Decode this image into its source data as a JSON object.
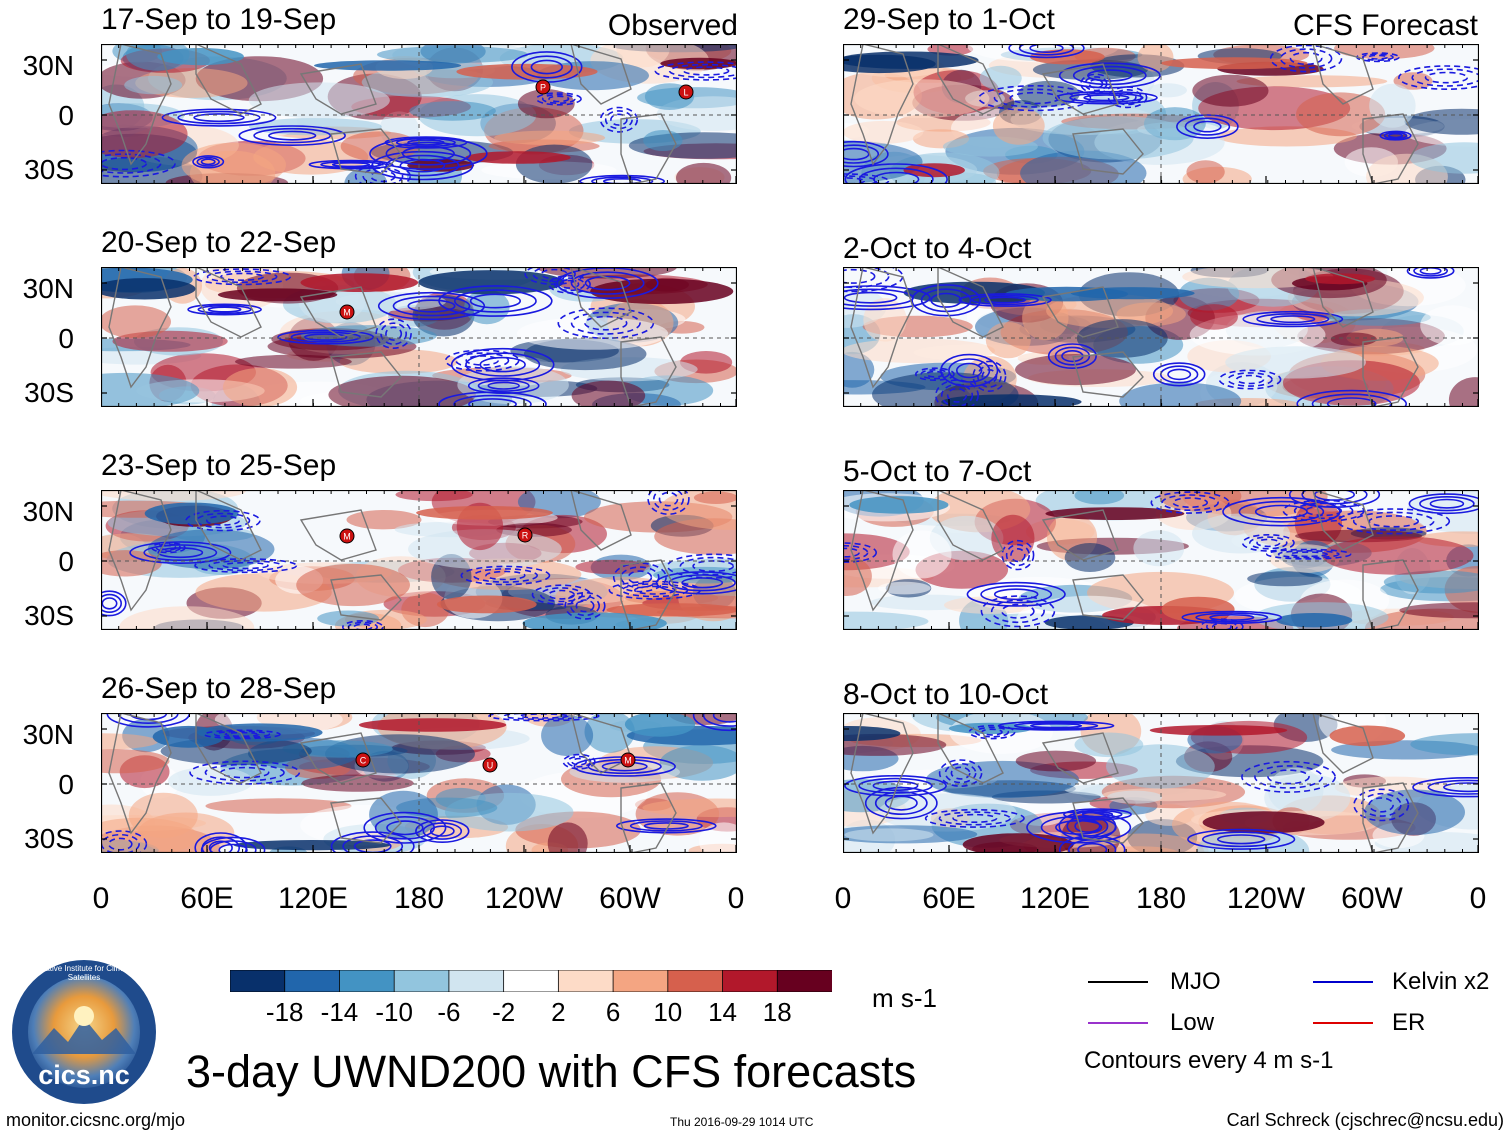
{
  "header": {
    "observed_label": "Observed",
    "forecast_label": "CFS Forecast"
  },
  "panels": {
    "left": [
      {
        "title": "17-Sep to 19-Sep",
        "storms": [
          "P",
          "L"
        ]
      },
      {
        "title": "20-Sep to 22-Sep",
        "storms": [
          "M"
        ]
      },
      {
        "title": "23-Sep to 25-Sep",
        "storms": [
          "M",
          "R"
        ]
      },
      {
        "title": "26-Sep to 28-Sep",
        "storms": [
          "C",
          "U",
          "M"
        ]
      }
    ],
    "right": [
      {
        "title": "29-Sep to 1-Oct"
      },
      {
        "title": "2-Oct to 4-Oct"
      },
      {
        "title": "5-Oct to 7-Oct"
      },
      {
        "title": "8-Oct to 10-Oct"
      }
    ]
  },
  "axes": {
    "lat_labels": [
      "30N",
      "0",
      "30S"
    ],
    "lon_labels": [
      "0",
      "60E",
      "120E",
      "180",
      "120W",
      "60W",
      "0"
    ]
  },
  "colorbar": {
    "ticks": [
      "-18",
      "-14",
      "-10",
      "-6",
      "-2",
      "2",
      "6",
      "10",
      "14",
      "18"
    ],
    "colors": [
      "#08306b",
      "#2166ac",
      "#4393c3",
      "#92c5de",
      "#d1e5f0",
      "#ffffff",
      "#fddbc7",
      "#f4a582",
      "#d6604d",
      "#b2182b",
      "#67001f"
    ],
    "units": "m s-1"
  },
  "legend": {
    "items": [
      {
        "label": "MJO",
        "color": "#000000"
      },
      {
        "label": "Kelvin x2",
        "color": "#0000cc"
      },
      {
        "label": "Low",
        "color": "#9932cc"
      },
      {
        "label": "ER",
        "color": "#dd0000"
      }
    ],
    "contour_note": "Contours every 4 m s-1"
  },
  "logo": {
    "text": "cics.nc",
    "ring_text": "Cooperative Institute for Climate and Satellites"
  },
  "footer": {
    "title": "3-day UWND200 with CFS forecasts",
    "url": "monitor.cicsnc.org/mjo",
    "timestamp": "Thu 2016-09-29 1014 UTC",
    "credit": "Carl Schreck (cjschrec@ncsu.edu)"
  }
}
